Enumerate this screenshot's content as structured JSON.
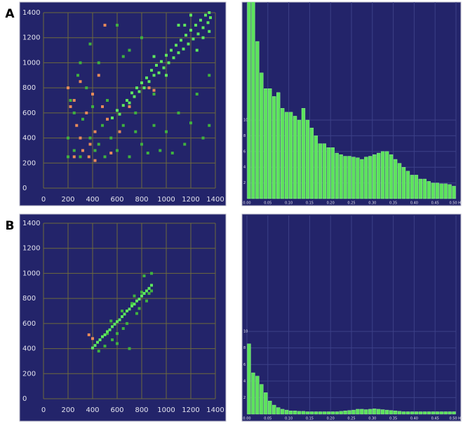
{
  "chart_data": [
    {
      "type": "scatter",
      "panel_label": "A",
      "xlim": [
        0,
        1400
      ],
      "ylim": [
        0,
        1400
      ],
      "xticks": [
        0,
        200,
        400,
        600,
        800,
        1000,
        1200,
        1400
      ],
      "yticks": [
        0,
        200,
        400,
        600,
        800,
        1000,
        1200,
        1400
      ],
      "grid": true,
      "series": [
        {
          "color": "#3fb23f",
          "x": [
            200,
            220,
            250,
            280,
            300,
            320,
            350,
            380,
            400,
            420,
            450,
            480,
            500,
            520,
            550,
            600,
            650,
            700,
            750,
            800,
            850,
            900,
            950,
            1000,
            1050,
            1100,
            1150,
            1200,
            1300,
            1350,
            380,
            600,
            700,
            800,
            900,
            750,
            250,
            300,
            450,
            200,
            650,
            1250,
            1350
          ],
          "values": [
            400,
            700,
            300,
            900,
            250,
            550,
            800,
            400,
            650,
            300,
            1000,
            500,
            250,
            700,
            400,
            300,
            500,
            250,
            450,
            350,
            280,
            500,
            300,
            450,
            280,
            600,
            350,
            520,
            400,
            500,
            1150,
            1300,
            1100,
            1200,
            750,
            600,
            600,
            1000,
            350,
            250,
            1050,
            750,
            900
          ]
        },
        {
          "color": "#5ee85e",
          "x": [
            560,
            600,
            620,
            650,
            680,
            700,
            720,
            740,
            760,
            780,
            800,
            820,
            840,
            860,
            880,
            900,
            920,
            940,
            960,
            980,
            1000,
            1020,
            1040,
            1060,
            1080,
            1100,
            1120,
            1140,
            1160,
            1180,
            1200,
            1220,
            1240,
            1260,
            1280,
            1300,
            1320,
            1340,
            1350,
            1360,
            1100,
            1200,
            1250,
            1000,
            1300,
            900,
            1150,
            1350
          ],
          "values": [
            560,
            620,
            590,
            660,
            700,
            680,
            760,
            730,
            800,
            770,
            840,
            800,
            880,
            850,
            940,
            900,
            980,
            920,
            1010,
            960,
            1060,
            1000,
            1100,
            1040,
            1140,
            1080,
            1180,
            1110,
            1220,
            1150,
            1260,
            1190,
            1300,
            1230,
            1340,
            1280,
            1380,
            1320,
            1400,
            1360,
            1300,
            1380,
            1100,
            900,
            1200,
            1050,
            1300,
            1250
          ]
        },
        {
          "color": "#e88a5a",
          "x": [
            200,
            220,
            250,
            270,
            300,
            320,
            350,
            370,
            400,
            420,
            450,
            480,
            500,
            520,
            550,
            300,
            380,
            420,
            250,
            860,
            900,
            620,
            700
          ],
          "values": [
            800,
            650,
            700,
            500,
            850,
            300,
            600,
            250,
            750,
            450,
            900,
            650,
            1300,
            550,
            280,
            400,
            350,
            220,
            250,
            800,
            780,
            450,
            650
          ]
        }
      ]
    },
    {
      "type": "histogram",
      "xlim": [
        0,
        0.5
      ],
      "ylim": [
        0,
        25
      ],
      "xticks": [
        {
          "value": 0,
          "label": "0.00"
        },
        {
          "value": 0.05,
          "label": "0.05"
        },
        {
          "value": 0.1,
          "label": "0.10"
        },
        {
          "value": 0.15,
          "label": "0.15"
        },
        {
          "value": 0.2,
          "label": "0.20"
        },
        {
          "value": 0.25,
          "label": "0.25"
        },
        {
          "value": 0.3,
          "label": "0.30"
        },
        {
          "value": 0.35,
          "label": "0.35"
        },
        {
          "value": 0.4,
          "label": "0.40"
        },
        {
          "value": 0.45,
          "label": "0.45"
        },
        {
          "value": 0.5,
          "label": "0.50 Hz"
        }
      ],
      "yticks": [
        2,
        4,
        6,
        8,
        10
      ],
      "grid": true,
      "color": "#5de35d",
      "bins": [
        0,
        0.01,
        0.02,
        0.03,
        0.04,
        0.05,
        0.06,
        0.07,
        0.08,
        0.09,
        0.1,
        0.11,
        0.12,
        0.13,
        0.14,
        0.15,
        0.16,
        0.17,
        0.18,
        0.19,
        0.2,
        0.21,
        0.22,
        0.23,
        0.24,
        0.25,
        0.26,
        0.27,
        0.28,
        0.29,
        0.3,
        0.31,
        0.32,
        0.33,
        0.34,
        0.35,
        0.36,
        0.37,
        0.38,
        0.39,
        0.4,
        0.41,
        0.42,
        0.43,
        0.44,
        0.45,
        0.46,
        0.47,
        0.48,
        0.49,
        0.5
      ],
      "values": [
        25,
        25,
        20,
        16,
        14,
        14,
        13,
        13.5,
        11.5,
        11,
        11,
        10.5,
        10,
        11.5,
        10,
        9,
        8,
        7,
        7,
        6.5,
        6.5,
        5.8,
        5.6,
        5.4,
        5.4,
        5.3,
        5.2,
        5,
        5.3,
        5.4,
        5.6,
        5.8,
        6,
        6,
        5.6,
        5,
        4.5,
        4,
        3.5,
        3,
        3,
        2.5,
        2.5,
        2.2,
        2,
        2,
        1.9,
        1.9,
        1.8,
        1.6
      ]
    },
    {
      "type": "scatter",
      "panel_label": "B",
      "xlim": [
        0,
        1400
      ],
      "ylim": [
        0,
        1400
      ],
      "xticks": [
        0,
        200,
        400,
        600,
        800,
        1000,
        1200,
        1400
      ],
      "yticks": [
        0,
        200,
        400,
        600,
        800,
        1000,
        1200,
        1400
      ],
      "grid": true,
      "series": [
        {
          "color": "#3fb23f",
          "x": [
            450,
            500,
            520,
            560,
            600,
            640,
            680,
            720,
            760,
            800,
            840,
            880,
            700,
            740,
            600,
            820,
            860,
            550,
            880,
            650,
            780
          ],
          "values": [
            380,
            420,
            520,
            470,
            520,
            700,
            600,
            760,
            680,
            850,
            780,
            1000,
            400,
            820,
            440,
            980,
            840,
            620,
            860,
            560,
            720
          ]
        },
        {
          "color": "#5ee85e",
          "x": [
            400,
            420,
            440,
            460,
            480,
            500,
            520,
            540,
            560,
            580,
            600,
            620,
            640,
            660,
            680,
            700,
            720,
            740,
            760,
            780,
            800,
            820,
            840,
            860,
            880
          ],
          "values": [
            405,
            425,
            450,
            470,
            495,
            510,
            535,
            550,
            575,
            595,
            615,
            630,
            655,
            675,
            700,
            715,
            740,
            755,
            780,
            795,
            820,
            840,
            860,
            880,
            905
          ]
        },
        {
          "color": "#e88a5a",
          "x": [
            370,
            400
          ],
          "values": [
            510,
            480
          ]
        }
      ]
    },
    {
      "type": "histogram",
      "xlim": [
        0,
        0.5
      ],
      "ylim": [
        0,
        24
      ],
      "xticks": [
        {
          "value": 0,
          "label": "0.00"
        },
        {
          "value": 0.05,
          "label": "0.05"
        },
        {
          "value": 0.1,
          "label": "0.10"
        },
        {
          "value": 0.15,
          "label": "0.15"
        },
        {
          "value": 0.2,
          "label": "0.20"
        },
        {
          "value": 0.25,
          "label": "0.25"
        },
        {
          "value": 0.3,
          "label": "0.30"
        },
        {
          "value": 0.35,
          "label": "0.35"
        },
        {
          "value": 0.4,
          "label": "0.40"
        },
        {
          "value": 0.45,
          "label": "0.45"
        },
        {
          "value": 0.5,
          "label": "0.50 Hz"
        }
      ],
      "yticks": [
        2,
        4,
        6,
        8,
        10
      ],
      "grid": true,
      "color": "#5de35d",
      "bins": [
        0,
        0.01,
        0.02,
        0.03,
        0.04,
        0.05,
        0.06,
        0.07,
        0.08,
        0.09,
        0.1,
        0.11,
        0.12,
        0.13,
        0.14,
        0.15,
        0.16,
        0.17,
        0.18,
        0.19,
        0.2,
        0.21,
        0.22,
        0.23,
        0.24,
        0.25,
        0.26,
        0.27,
        0.28,
        0.29,
        0.3,
        0.31,
        0.32,
        0.33,
        0.34,
        0.35,
        0.36,
        0.37,
        0.38,
        0.39,
        0.4,
        0.41,
        0.42,
        0.43,
        0.44,
        0.45,
        0.46,
        0.47,
        0.48,
        0.49,
        0.5
      ],
      "values": [
        8.5,
        5,
        4.6,
        3.6,
        2.6,
        1.6,
        1.1,
        0.8,
        0.6,
        0.5,
        0.4,
        0.4,
        0.35,
        0.35,
        0.3,
        0.3,
        0.3,
        0.3,
        0.3,
        0.3,
        0.3,
        0.3,
        0.35,
        0.4,
        0.45,
        0.5,
        0.6,
        0.6,
        0.55,
        0.6,
        0.65,
        0.6,
        0.55,
        0.5,
        0.45,
        0.4,
        0.35,
        0.3,
        0.3,
        0.3,
        0.3,
        0.3,
        0.3,
        0.3,
        0.3,
        0.3,
        0.3,
        0.3,
        0.3,
        0.3
      ]
    }
  ]
}
